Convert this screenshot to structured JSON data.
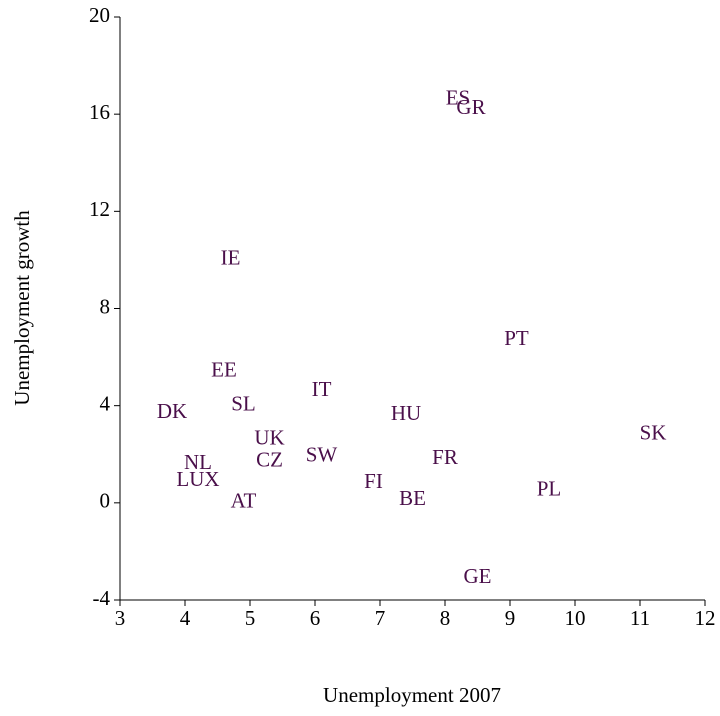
{
  "chart_data": {
    "type": "scatter",
    "x_label": "Unemployment 2007",
    "y_label": "Unemployment growth",
    "labels": [
      "ES",
      "GR",
      "IE",
      "PT",
      "EE",
      "IT",
      "DK",
      "SL",
      "HU",
      "SK",
      "UK",
      "SW",
      "CZ",
      "NL",
      "FR",
      "LUX",
      "FI",
      "PL",
      "AT",
      "BE",
      "GE"
    ],
    "x": [
      8.2,
      8.4,
      4.7,
      9.1,
      4.6,
      6.1,
      3.8,
      4.9,
      7.4,
      11.2,
      5.3,
      6.1,
      5.3,
      4.2,
      8.0,
      4.2,
      6.9,
      9.6,
      4.9,
      7.5,
      8.5
    ],
    "values": [
      16.6,
      16.2,
      10.0,
      6.7,
      5.4,
      4.6,
      3.7,
      4.0,
      3.6,
      2.8,
      2.6,
      1.9,
      1.7,
      1.6,
      1.8,
      0.9,
      0.8,
      0.5,
      0.0,
      0.1,
      -3.1
    ],
    "color": "#4a0f4a",
    "xlim": [
      3,
      12
    ],
    "xticks": [
      3,
      4,
      5,
      6,
      7,
      8,
      9,
      10,
      11,
      12
    ],
    "ylim": [
      -4,
      20
    ],
    "yticks": [
      -4,
      0,
      4,
      8,
      12,
      16,
      20
    ]
  }
}
